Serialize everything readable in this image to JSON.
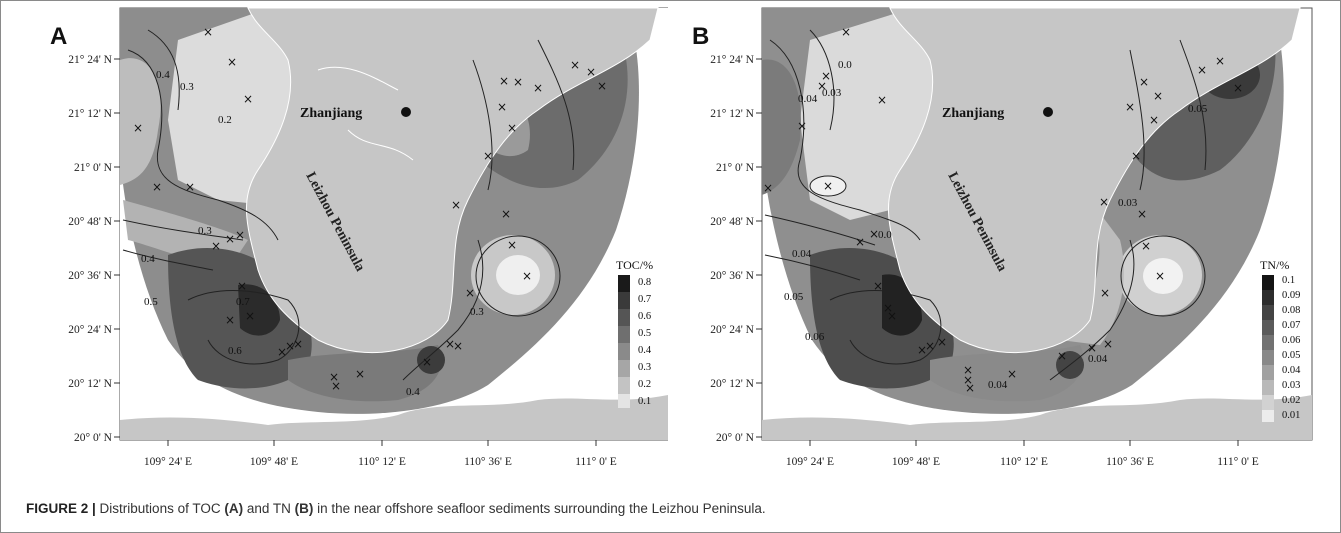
{
  "figure": {
    "caption_prefix": "FIGURE 2 |",
    "caption_parts": [
      {
        "text": " Distributions of TOC ",
        "bold": false
      },
      {
        "text": "(A)",
        "bold": true
      },
      {
        "text": " and TN ",
        "bold": false
      },
      {
        "text": "(B)",
        "bold": true
      },
      {
        "text": " in the near offshore seafloor sediments surrounding the Leizhou Peninsula.",
        "bold": false
      }
    ]
  },
  "axes": {
    "lat_ticks": [
      "21° 24' N",
      "21° 12' N",
      "21° 0' N",
      "20° 48' N",
      "20° 36' N",
      "20° 24' N",
      "20° 12' N",
      "20° 0' N"
    ],
    "lon_ticks": [
      "109° 24' E",
      "109° 48' E",
      "110° 12' E",
      "110° 36' E",
      "111° 0' E"
    ]
  },
  "panels": [
    {
      "letter": "A",
      "city": "Zhanjiang",
      "peninsula": "Leizhou Peninsula",
      "legend_title": "TOC/%",
      "legend_values": [
        "0.8",
        "0.7",
        "0.6",
        "0.5",
        "0.4",
        "0.3",
        "0.2",
        "0.1"
      ],
      "contour_labels": [
        "0.4",
        "0.3",
        "0.2",
        "0.3",
        "0.4",
        "0.5",
        "0.6",
        "0.7",
        "0.4",
        "0.3"
      ]
    },
    {
      "letter": "B",
      "city": "Zhanjiang",
      "peninsula": "Leizhou Peninsula",
      "legend_title": "TN/%",
      "legend_values": [
        "0.1",
        "0.09",
        "0.08",
        "0.07",
        "0.06",
        "0.05",
        "0.04",
        "0.03",
        "0.02",
        "0.01"
      ],
      "contour_labels": [
        "0.04",
        "0.03",
        "0.0",
        "0.04",
        "0.0",
        "0.05",
        "0.06",
        "0.04",
        "0.04",
        "0.05",
        "0.03"
      ]
    }
  ],
  "colors": {
    "land": "#c9c9c9",
    "sea_light": "#e6e6e6",
    "sea_mid": "#a8a8a8",
    "sea_dark": "#6f6f6f",
    "sea_darkest": "#2e2e2e"
  }
}
